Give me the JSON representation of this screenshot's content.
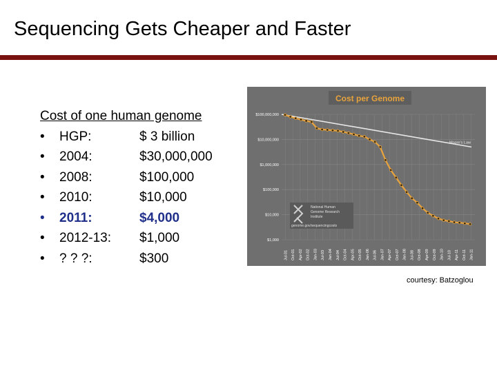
{
  "slide": {
    "title": "Sequencing Gets Cheaper and Faster",
    "heading": "Cost of one human genome",
    "items": [
      {
        "bullet": "•",
        "label": "HGP:",
        "cost": "$ 3 billion",
        "highlight": false
      },
      {
        "bullet": "•",
        "label": "2004:",
        "cost": "$30,000,000",
        "highlight": false
      },
      {
        "bullet": "•",
        "label": "2008:",
        "cost": "$100,000",
        "highlight": false
      },
      {
        "bullet": "•",
        "label": "2010:",
        "cost": "$10,000",
        "highlight": false
      },
      {
        "bullet": "•",
        "label": "2011:",
        "cost": "$4,000",
        "highlight": true
      },
      {
        "bullet": "•",
        "label": "2012-13:",
        "cost": "$1,000",
        "highlight": false
      },
      {
        "bullet": "•",
        "label": "? ? ?:",
        "cost": "$300",
        "highlight": false
      }
    ],
    "credit": "courtesy: Batzoglou",
    "colors": {
      "title_rule": "#7a1212",
      "highlight": "#1f2f8a"
    }
  },
  "chart_data": {
    "type": "line",
    "title": "Cost per Genome",
    "yscale": "log",
    "ylim": [
      1000,
      100000000
    ],
    "yticks": [
      "$100,000,000",
      "$10,000,000",
      "$1,000,000",
      "$100,000",
      "$10,000",
      "$1,000"
    ],
    "xticks": [
      "Jul-01",
      "Oct-01",
      "Apr-02",
      "Oct-02",
      "Jan-03",
      "Jul-03",
      "Jan-04",
      "Jul-04",
      "Oct-04",
      "Apr-05",
      "Oct-05",
      "Jan-06",
      "Jul-06",
      "Jan-07",
      "Apr-07",
      "Oct-07",
      "Jan-08",
      "Jul-08",
      "Oct-08",
      "Apr-09",
      "Oct-09",
      "Jan-10",
      "Jul-10",
      "Apr-11",
      "Oct-11",
      "Jan-11"
    ],
    "series": [
      {
        "name": "Cost per Genome",
        "values": [
          95000000,
          80000000,
          70000000,
          62000000,
          55000000,
          50000000,
          28000000,
          25000000,
          24000000,
          23000000,
          22000000,
          20000000,
          18000000,
          16000000,
          14000000,
          13000000,
          10000000,
          8000000,
          5000000,
          1500000,
          600000,
          300000,
          150000,
          80000,
          45000,
          30000,
          18000,
          12000,
          9000,
          7000,
          6000,
          5500,
          5000,
          4800,
          4500,
          4200
        ]
      },
      {
        "name": "Moore's Law",
        "values": [
          100000000,
          5000000
        ]
      }
    ],
    "legend": [
      "Moore's Law"
    ],
    "logo_lines": [
      "National Human",
      "Genome Research",
      "Institute",
      "genome.gov/sequencingcosts"
    ],
    "colors": {
      "background": "#6f6f6f",
      "title_bg": "#5e5e5e",
      "title_text": "#e8a33c",
      "line": "#e8a33c",
      "moore": "#e8e8e8",
      "grid": "#868686",
      "tick_text": "#ffffff"
    }
  }
}
